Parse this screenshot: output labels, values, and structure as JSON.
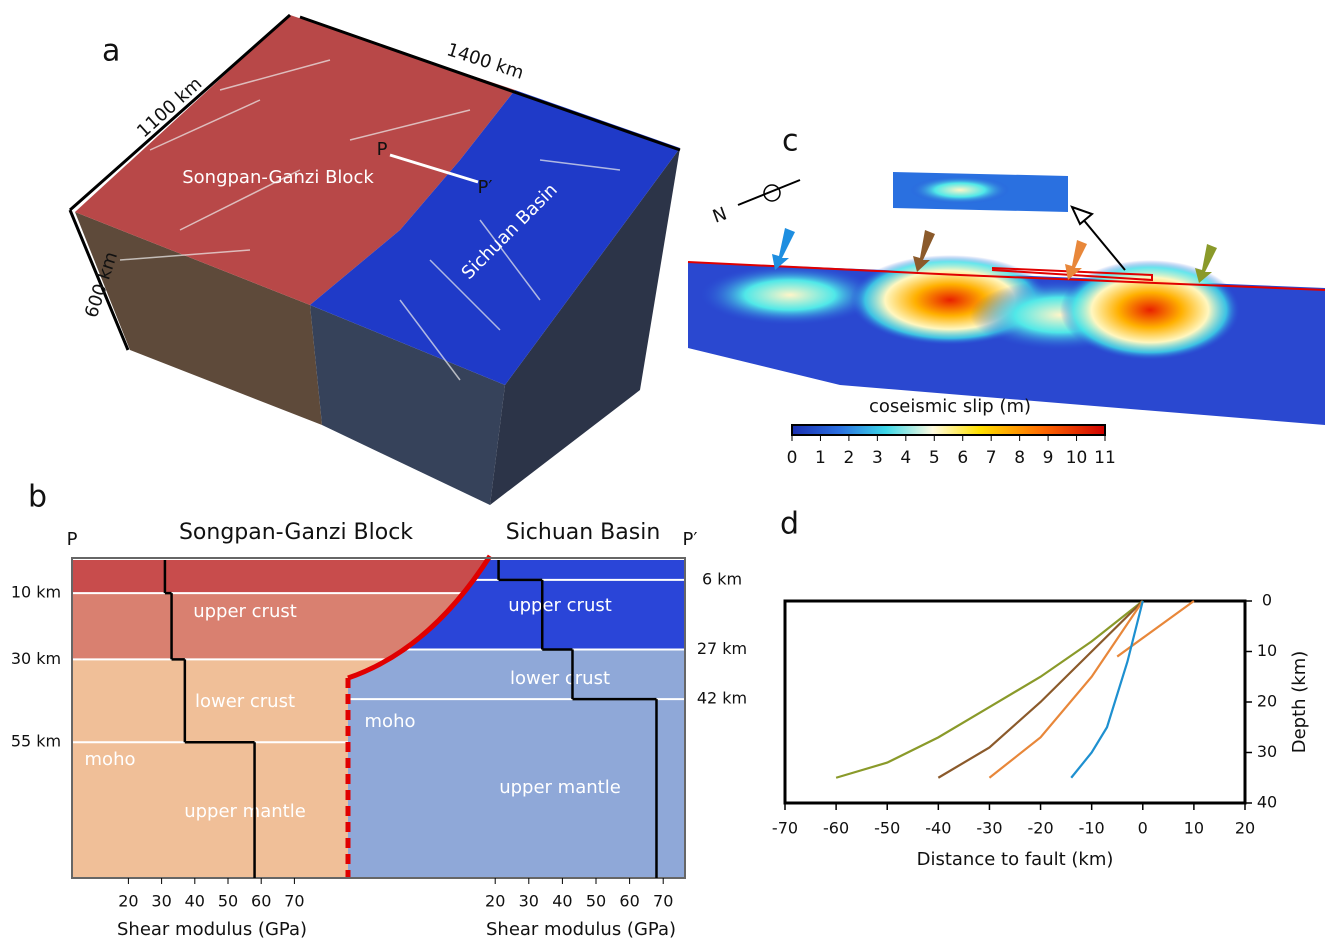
{
  "panel_a": {
    "label": "a",
    "width_label": "1400 km",
    "length_label": "1100 km",
    "depth_label": "600 km",
    "left_region": "Songpan-Ganzi Block",
    "right_region": "Sichuan Basin",
    "profile_start": "P",
    "profile_end": "P′"
  },
  "panel_b": {
    "label": "b",
    "profile_start": "P",
    "profile_end": "P′",
    "left_title": "Songpan-Ganzi  Block",
    "right_title": "Sichuan Basin",
    "depth_lim": [
      0,
      96
    ],
    "left_depths": [
      {
        "value": 10,
        "label": "10 km"
      },
      {
        "value": 30,
        "label": "30 km"
      },
      {
        "value": 55,
        "label": "55 km"
      }
    ],
    "right_depths": [
      {
        "value": 6,
        "label": "6 km"
      },
      {
        "value": 27,
        "label": "27 km"
      },
      {
        "value": 42,
        "label": "42 km"
      }
    ],
    "left_layers": [
      "upper crust",
      "lower crust",
      "moho",
      "upper mantle"
    ],
    "right_layers": [
      "upper crust",
      "lower crust",
      "moho",
      "upper mantle"
    ],
    "left_modulus": [
      31,
      33,
      37,
      58
    ],
    "right_modulus": [
      21,
      34,
      43,
      68
    ],
    "modulus_ticks": [
      20,
      30,
      40,
      50,
      60,
      70
    ],
    "modulus_label": "Shear modulus (GPa)"
  },
  "panel_c": {
    "label": "c",
    "north": "N",
    "colorbar_title": "coseismic slip (m)",
    "colorbar_lim": [
      0,
      11
    ],
    "colorbar_ticks": [
      0,
      1,
      2,
      3,
      4,
      5,
      6,
      7,
      8,
      9,
      10,
      11
    ]
  },
  "chart_data": {
    "type": "line",
    "label": "d",
    "x_label": "Distance to fault (km)",
    "y_label": "Depth (km)",
    "xlim": [
      -70,
      20
    ],
    "xticks": [
      -70,
      -60,
      -50,
      -40,
      -30,
      -20,
      -10,
      0,
      10,
      20
    ],
    "ylim": [
      0,
      40
    ],
    "yticks": [
      0,
      10,
      20,
      30,
      40
    ],
    "y_inverted": true,
    "series": [
      {
        "color": "#8a9a2a",
        "x": [
          0,
          -10,
          -20,
          -30,
          -40,
          -50,
          -60
        ],
        "values": [
          0,
          8,
          15,
          21,
          27,
          32,
          35
        ]
      },
      {
        "color": "#8b5a2b",
        "x": [
          0,
          -10,
          -20,
          -30,
          -40
        ],
        "values": [
          0,
          10,
          20,
          29,
          35
        ]
      },
      {
        "color": "#e8873a",
        "x": [
          10,
          -5,
          null,
          0,
          -10,
          -20,
          -30
        ],
        "values": [
          0,
          11,
          null,
          0,
          15,
          27,
          35
        ]
      },
      {
        "color": "#1e90d0",
        "x": [
          0,
          -3,
          -7,
          -10,
          -14
        ],
        "values": [
          0,
          12,
          25,
          30,
          35
        ]
      }
    ]
  }
}
